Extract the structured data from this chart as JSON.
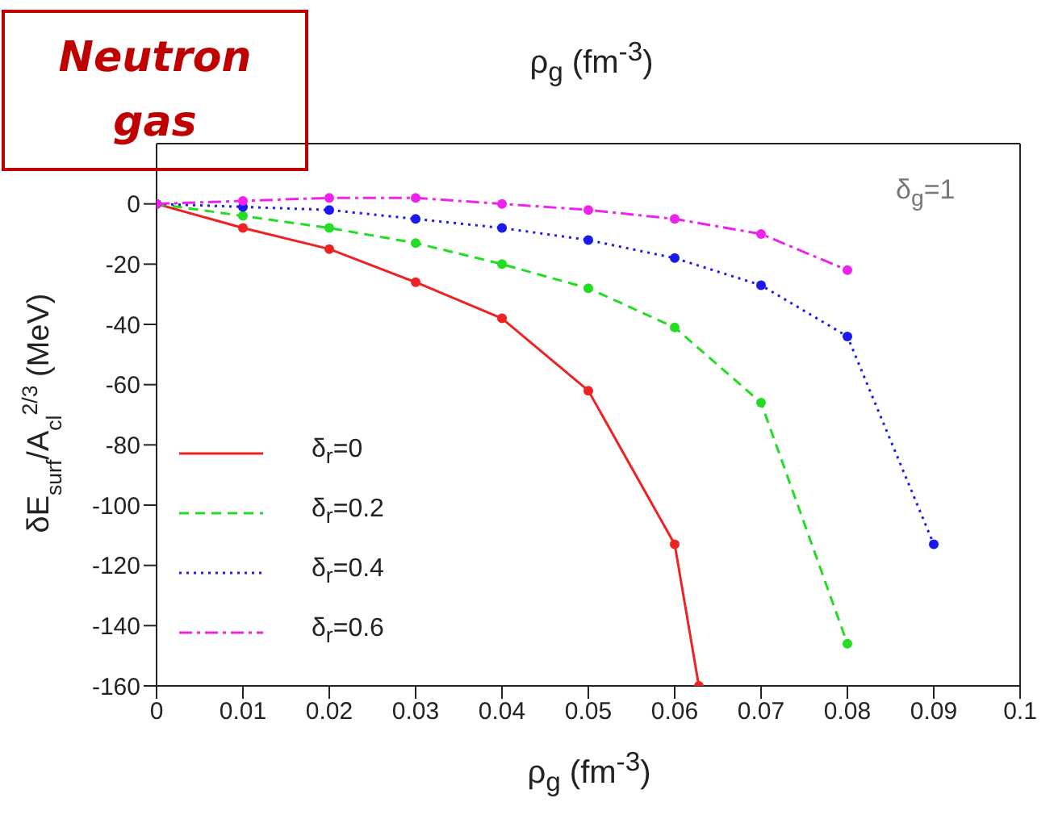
{
  "chart_data": {
    "type": "line",
    "title": "ρ$_{g}$ (fm$^{-3}$)",
    "xlabel": "ρ$_{g}$ (fm$^{-3}$)",
    "ylabel": "δE$_{surf}$/A$_{cl}$$^{2/3}$ (MeV)",
    "annotations": [
      "Neutron gas",
      "δ$_{g}$=1"
    ],
    "xlim": [
      0,
      0.1
    ],
    "xticks": [
      0,
      0.01,
      0.02,
      0.03,
      0.04,
      0.05,
      0.06,
      0.07,
      0.08,
      0.09,
      0.1
    ],
    "ylim": [
      -160,
      20
    ],
    "yticks": [
      -160,
      -140,
      -120,
      -100,
      -80,
      -60,
      -40,
      -20,
      0
    ],
    "grid": false,
    "legend": "bottom left",
    "marker": "circle",
    "series": [
      {
        "name": "δ$_{r}$=0",
        "color": "#ee2222",
        "line_style": "solid",
        "x": [
          0,
          0.01,
          0.02,
          0.03,
          0.04,
          0.05,
          0.06,
          0.0628
        ],
        "values": [
          0,
          -8,
          -15,
          -26,
          -38,
          -62,
          -113,
          -160
        ]
      },
      {
        "name": "δ$_{r}$=0.2",
        "color": "#22dd22",
        "line_style": "dashed",
        "x": [
          0,
          0.01,
          0.02,
          0.03,
          0.04,
          0.05,
          0.06,
          0.07,
          0.08
        ],
        "values": [
          0,
          -4,
          -8,
          -13,
          -20,
          -28,
          -41,
          -66,
          -146
        ]
      },
      {
        "name": "δ$_{r}$=0.4",
        "color": "#1a1aee",
        "line_style": "dotted",
        "x": [
          0,
          0.01,
          0.02,
          0.03,
          0.04,
          0.05,
          0.06,
          0.07,
          0.08,
          0.09
        ],
        "values": [
          0,
          -1,
          -2,
          -5,
          -8,
          -12,
          -18,
          -27,
          -44,
          -113
        ]
      },
      {
        "name": "δ$_{r}$=0.6",
        "color": "#ee22ee",
        "line_style": "dashdot",
        "x": [
          0,
          0.01,
          0.02,
          0.03,
          0.04,
          0.05,
          0.06,
          0.07,
          0.08
        ],
        "values": [
          0,
          1,
          2,
          2,
          0,
          -2,
          -5,
          -10,
          -22
        ]
      }
    ]
  }
}
